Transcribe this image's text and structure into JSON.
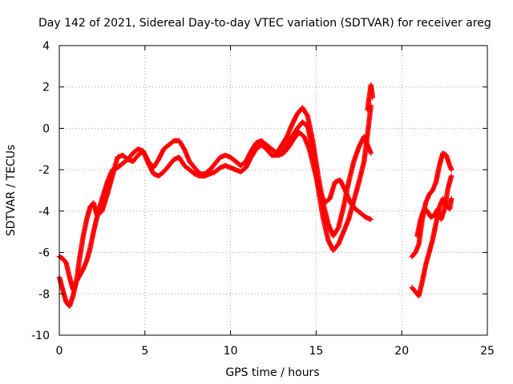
{
  "chart_data": {
    "type": "scatter",
    "title": "Day 142 of 2021, Sidereal Day-to-day VTEC variation (SDTVAR) for receiver areg",
    "xlabel": "GPS time / hours",
    "ylabel": "SDTVAR / TECUs",
    "xlim": [
      0,
      25
    ],
    "ylim": [
      -10,
      4
    ],
    "xticks": [
      0,
      5,
      10,
      15,
      20,
      25
    ],
    "yticks": [
      -10,
      -8,
      -6,
      -4,
      -2,
      0,
      2,
      4
    ],
    "xtick_labels": [
      "0",
      "5",
      "10",
      "15",
      "20",
      "25"
    ],
    "ytick_labels": [
      "-10",
      "-8",
      "-6",
      "-4",
      "-2",
      "0",
      "2",
      "4"
    ],
    "grid": true,
    "legend": "none",
    "marker": "plus",
    "color": "#ff0000",
    "series": [
      {
        "x": [
          0.0,
          0.2,
          0.4,
          0.6,
          0.8,
          1.0,
          1.2,
          1.4,
          1.6,
          1.8,
          2.0,
          2.2,
          2.5,
          2.8,
          3.1,
          3.4,
          3.7,
          4.0,
          4.3,
          4.6,
          4.9,
          5.2,
          5.5,
          5.8,
          6.1,
          6.4,
          6.7,
          7.0,
          7.3,
          7.6,
          7.9,
          8.2,
          8.5,
          8.8,
          9.1,
          9.4,
          9.7,
          10.0,
          10.3,
          10.6,
          10.9,
          11.2,
          11.5,
          11.8,
          12.1,
          12.4,
          12.7,
          13.0,
          13.3,
          13.6,
          13.9,
          14.2,
          14.5,
          14.8,
          15.1,
          15.4,
          15.7,
          16.0,
          16.3,
          16.6,
          16.9,
          17.2,
          17.5,
          17.8,
          18.0,
          18.2
        ],
        "y": [
          -6.2,
          -6.3,
          -6.5,
          -7.2,
          -7.8,
          -7.4,
          -6.2,
          -5.2,
          -4.4,
          -3.8,
          -3.6,
          -4.2,
          -4.0,
          -3.2,
          -2.3,
          -1.4,
          -1.3,
          -1.5,
          -1.2,
          -1.0,
          -1.1,
          -1.6,
          -1.9,
          -1.5,
          -1.0,
          -0.8,
          -0.6,
          -0.6,
          -1.0,
          -1.6,
          -1.9,
          -2.2,
          -2.2,
          -2.0,
          -1.7,
          -1.4,
          -1.3,
          -1.4,
          -1.6,
          -1.8,
          -1.6,
          -1.1,
          -0.7,
          -0.6,
          -0.8,
          -1.0,
          -1.2,
          -0.8,
          -0.4,
          0.2,
          0.7,
          1.0,
          0.6,
          -0.6,
          -2.2,
          -3.6,
          -4.6,
          -5.2,
          -4.8,
          -3.8,
          -2.6,
          -1.6,
          -0.9,
          -0.4,
          -0.8,
          -1.2
        ]
      },
      {
        "x": [
          0.0,
          0.2,
          0.4,
          0.6,
          0.8,
          1.0,
          1.2,
          1.4,
          1.6,
          1.8,
          2.0,
          2.2,
          2.5,
          2.8,
          3.1,
          3.4,
          3.7,
          4.0,
          4.3,
          4.6,
          4.9,
          5.2,
          5.5,
          5.8,
          6.1,
          6.4,
          6.7,
          7.0,
          7.3,
          7.6,
          7.9,
          8.2,
          8.5,
          8.8,
          9.1,
          9.4,
          9.7,
          10.0,
          10.3,
          10.6,
          10.9,
          11.2,
          11.5,
          11.8,
          12.1,
          12.4,
          12.7,
          13.0,
          13.3,
          13.6,
          13.9,
          14.2,
          14.5,
          14.8,
          15.1,
          15.4,
          15.7,
          16.0,
          16.3,
          16.6,
          16.9,
          17.2,
          17.5,
          17.8,
          18.0,
          18.2
        ],
        "y": [
          -7.2,
          -7.8,
          -8.4,
          -8.6,
          -8.1,
          -7.4,
          -7.1,
          -6.8,
          -6.4,
          -5.8,
          -5.0,
          -4.3,
          -3.4,
          -2.6,
          -2.0,
          -1.9,
          -1.7,
          -1.5,
          -1.6,
          -1.3,
          -1.1,
          -1.7,
          -2.2,
          -2.3,
          -2.1,
          -1.8,
          -1.5,
          -1.4,
          -1.8,
          -2.0,
          -2.2,
          -2.3,
          -2.3,
          -2.2,
          -2.1,
          -1.9,
          -1.8,
          -1.9,
          -2.0,
          -2.1,
          -1.9,
          -1.4,
          -1.0,
          -0.8,
          -1.0,
          -1.3,
          -1.3,
          -1.2,
          -0.8,
          -0.4,
          0.0,
          0.3,
          0.1,
          -1.0,
          -2.8,
          -4.3,
          -5.4,
          -5.9,
          -5.6,
          -5.0,
          -4.4,
          -3.5,
          -2.6,
          -1.6,
          -0.3,
          1.1
        ]
      },
      {
        "x": [
          12.8,
          13.1,
          13.4,
          13.7,
          14.0,
          14.3,
          14.6,
          14.9,
          15.2,
          15.5,
          15.8,
          16.1,
          16.4,
          16.7,
          17.0,
          17.3,
          17.6,
          17.9,
          18.2
        ],
        "y": [
          -1.3,
          -1.2,
          -0.9,
          -0.5,
          -0.2,
          -0.4,
          -1.0,
          -2.0,
          -3.0,
          -3.6,
          -3.4,
          -2.6,
          -2.5,
          -3.0,
          -3.6,
          -3.9,
          -4.1,
          -4.3,
          -4.4
        ]
      },
      {
        "x": [
          18.0,
          18.1,
          18.2,
          18.3
        ],
        "y": [
          0.9,
          1.5,
          2.1,
          1.5
        ]
      },
      {
        "x": [
          20.6,
          20.8,
          21.0,
          21.2,
          21.4,
          21.6,
          21.8,
          22.0,
          22.2,
          22.4,
          22.6,
          22.8,
          22.9
        ],
        "y": [
          -6.2,
          -6.0,
          -5.6,
          -4.4,
          -3.6,
          -3.2,
          -3.0,
          -2.6,
          -1.8,
          -1.2,
          -1.3,
          -1.8,
          -2.0
        ]
      },
      {
        "x": [
          20.6,
          20.8,
          21.0,
          21.2,
          21.4,
          21.6,
          21.8,
          22.0,
          22.2,
          22.4,
          22.6,
          22.8,
          22.9
        ],
        "y": [
          -7.7,
          -7.9,
          -8.1,
          -7.4,
          -6.6,
          -6.0,
          -5.4,
          -4.6,
          -3.8,
          -3.4,
          -3.7,
          -3.9,
          -3.4
        ]
      },
      {
        "x": [
          20.9,
          21.1,
          21.3,
          21.5,
          21.7,
          21.9,
          22.1,
          22.3,
          22.5,
          22.7,
          22.9
        ],
        "y": [
          -5.2,
          -4.4,
          -3.9,
          -4.0,
          -4.3,
          -4.2,
          -3.9,
          -4.4,
          -3.9,
          -2.9,
          -2.3
        ]
      }
    ]
  }
}
